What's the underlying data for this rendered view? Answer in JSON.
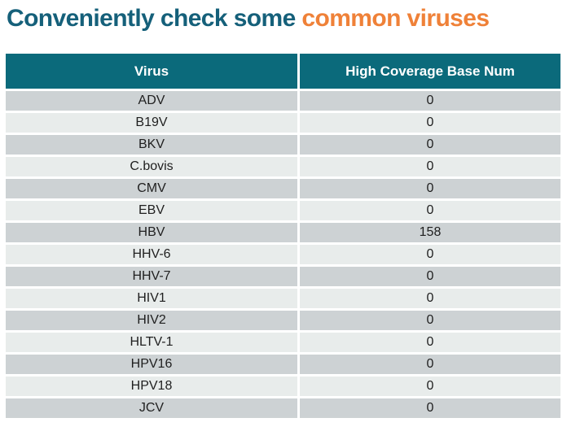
{
  "title": {
    "part1": "Conveniently check some ",
    "part2": "common viruses"
  },
  "colors": {
    "title_teal": "#15607a",
    "title_orange": "#ef8138",
    "header_background": "#0b6a7b",
    "header_text": "#ffffff",
    "row_dark": "#cdd2d4",
    "row_light": "#e8eceb",
    "cell_text": "#1f1f1f"
  },
  "table": {
    "columns": [
      "Virus",
      "High Coverage Base Num"
    ],
    "rows": [
      [
        "ADV",
        "0"
      ],
      [
        "B19V",
        "0"
      ],
      [
        "BKV",
        "0"
      ],
      [
        "C.bovis",
        "0"
      ],
      [
        "CMV",
        "0"
      ],
      [
        "EBV",
        "0"
      ],
      [
        "HBV",
        "158"
      ],
      [
        "HHV-6",
        "0"
      ],
      [
        "HHV-7",
        "0"
      ],
      [
        "HIV1",
        "0"
      ],
      [
        "HIV2",
        "0"
      ],
      [
        "HLTV-1",
        "0"
      ],
      [
        "HPV16",
        "0"
      ],
      [
        "HPV18",
        "0"
      ],
      [
        "JCV",
        "0"
      ]
    ]
  }
}
